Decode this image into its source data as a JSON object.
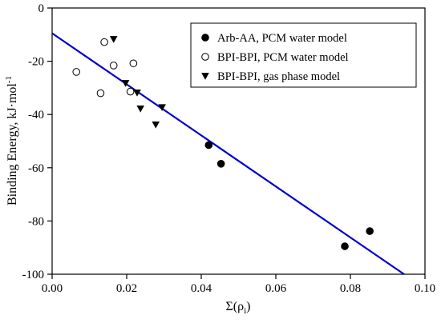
{
  "chart_data": {
    "type": "scatter",
    "xlabel_main": "Σ(ρ",
    "xlabel_sub": "i",
    "xlabel_close": ")",
    "ylabel": "Binding Energy, kJ·mol",
    "ylabel_sup": "-1",
    "xlim": [
      0.0,
      0.1
    ],
    "ylim": [
      -100,
      0
    ],
    "xticks": [
      0.0,
      0.02,
      0.04,
      0.06,
      0.08,
      0.1
    ],
    "xtick_labels": [
      "0.00",
      "0.02",
      "0.04",
      "0.06",
      "0.08",
      "0.10"
    ],
    "yticks": [
      0,
      -20,
      -40,
      -60,
      -80,
      -100
    ],
    "ytick_labels": [
      "0",
      "-20",
      "-40",
      "-60",
      "-80",
      "-100"
    ],
    "legend_position": "top-right",
    "grid": false,
    "series": [
      {
        "name": "Arb-AA, PCM water model",
        "marker": "filled-circle",
        "color": "#000000",
        "points": [
          [
            0.042,
            -51.5
          ],
          [
            0.0453,
            -58.5
          ],
          [
            0.0785,
            -89.5
          ],
          [
            0.0852,
            -83.8
          ]
        ]
      },
      {
        "name": "BPI-BPI, PCM water model",
        "marker": "open-circle",
        "color": "#000000",
        "points": [
          [
            0.0065,
            -24
          ],
          [
            0.013,
            -32
          ],
          [
            0.014,
            -12.8
          ],
          [
            0.0165,
            -21.6
          ],
          [
            0.021,
            -31.4
          ],
          [
            0.0218,
            -20.8
          ]
        ]
      },
      {
        "name": "BPI-BPI, gas phase model",
        "marker": "filled-triangle-down",
        "color": "#000000",
        "points": [
          [
            0.0165,
            -11.7
          ],
          [
            0.0197,
            -28.2
          ],
          [
            0.0228,
            -31.8
          ],
          [
            0.0237,
            -37.8
          ],
          [
            0.0278,
            -43.8
          ],
          [
            0.0295,
            -37.3
          ]
        ]
      }
    ],
    "fit_line": {
      "color": "#0000cc",
      "x": [
        0.0,
        0.0944
      ],
      "y": [
        -9.5,
        -100
      ]
    }
  }
}
